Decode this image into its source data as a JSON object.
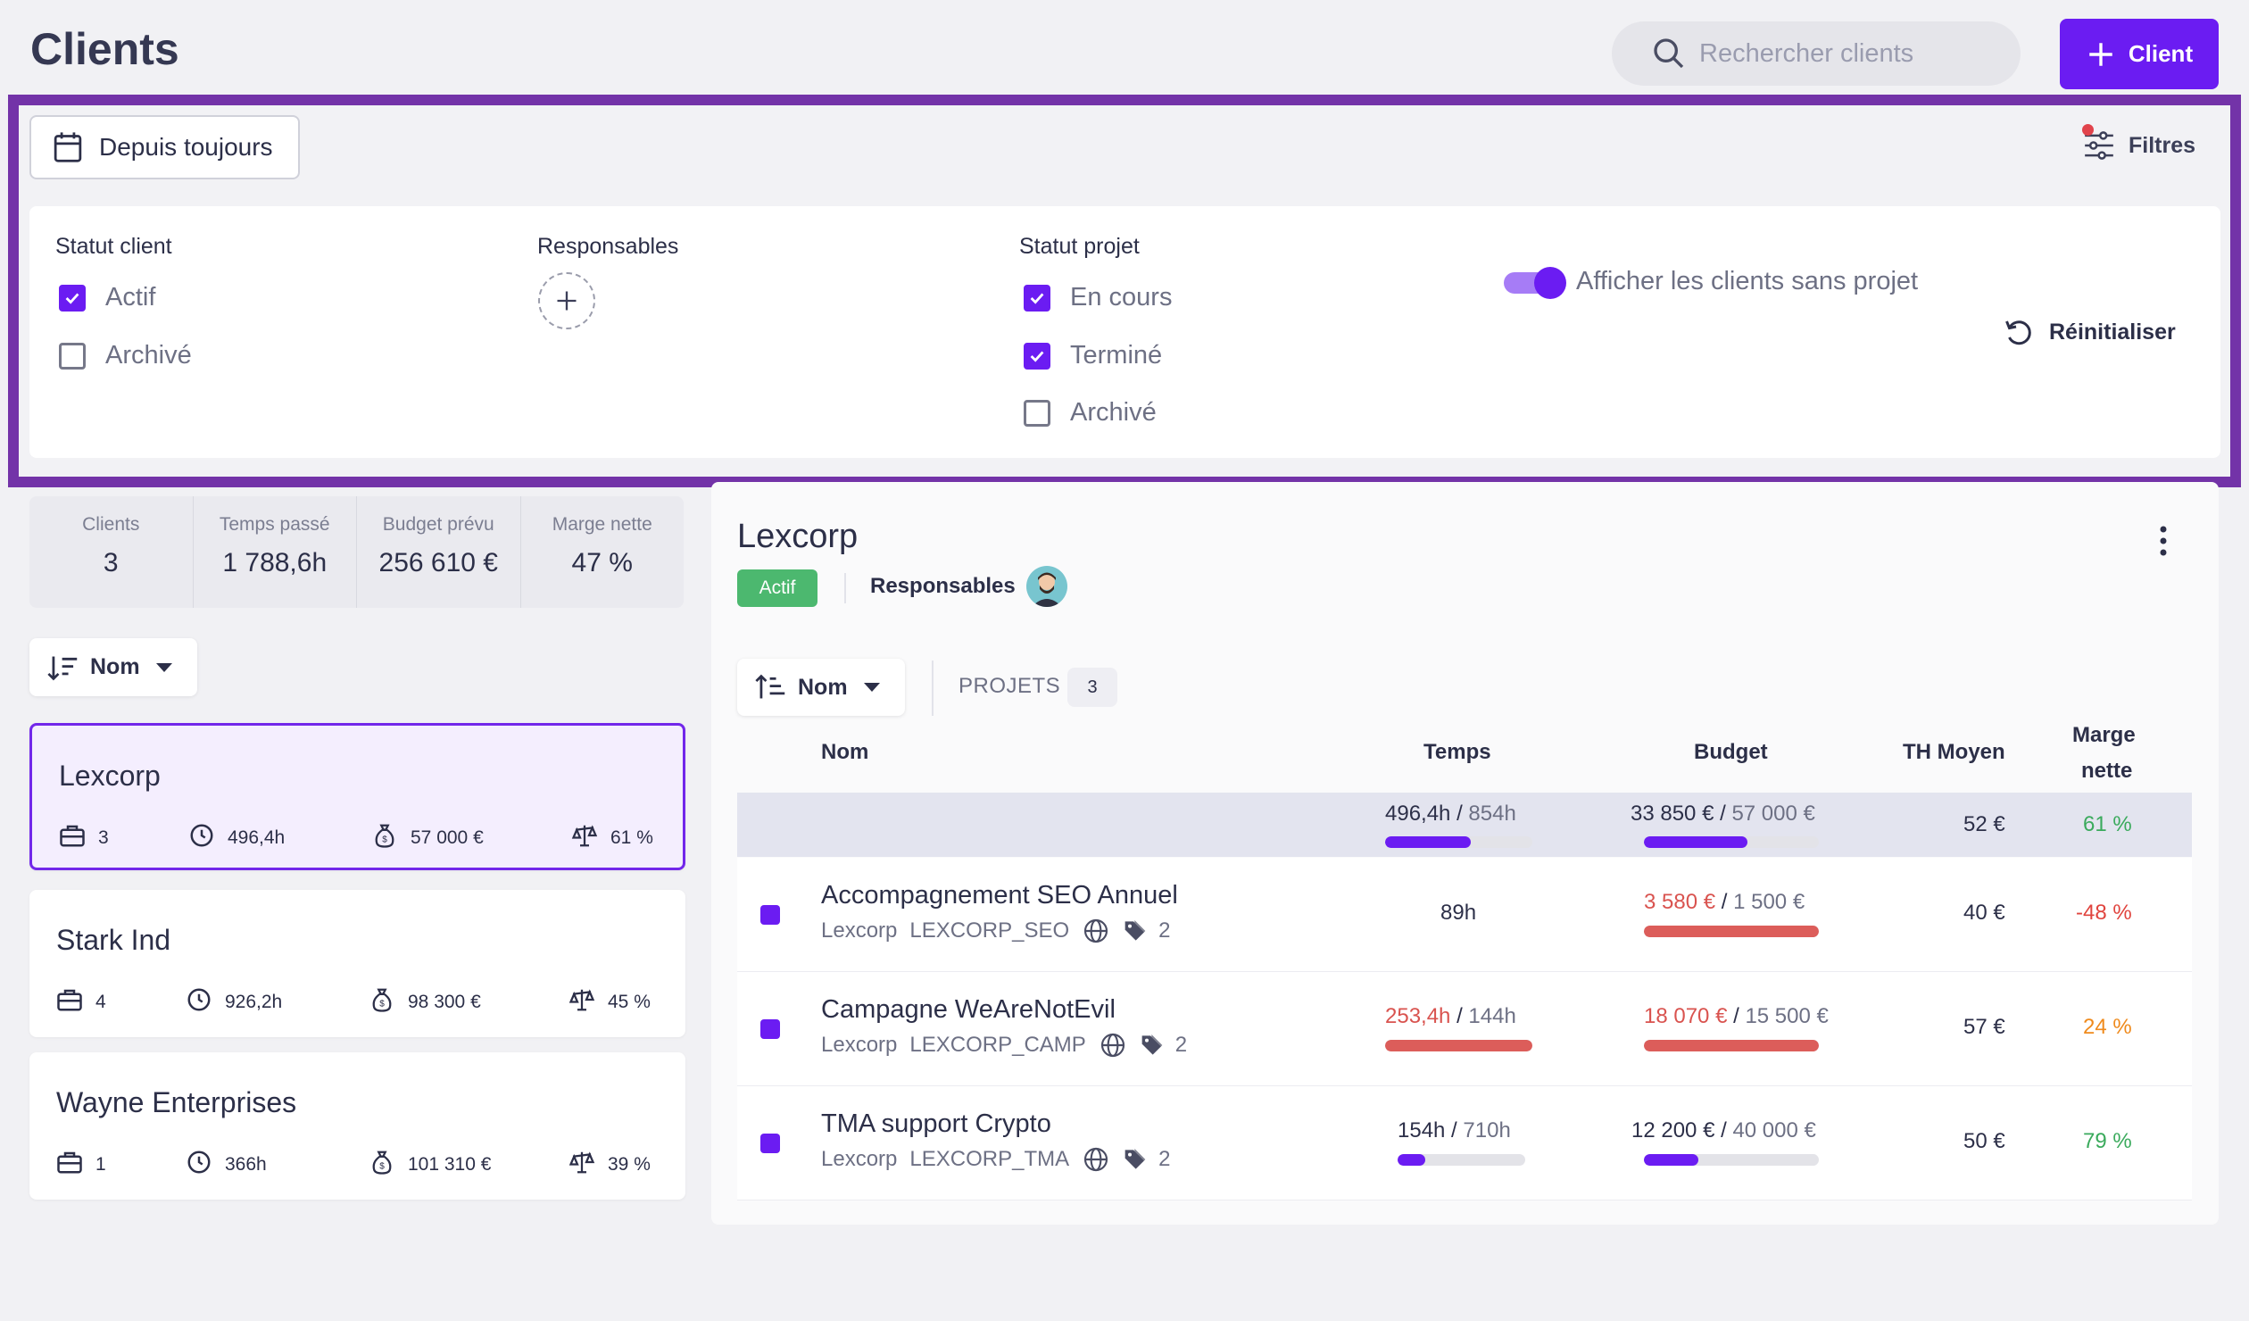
{
  "header": {
    "title": "Clients",
    "search_placeholder": "Rechercher clients",
    "add_client_label": "Client"
  },
  "filters": {
    "date_range": "Depuis toujours",
    "filters_label": "Filtres",
    "statut_client": {
      "title": "Statut client",
      "options": [
        {
          "label": "Actif",
          "checked": true
        },
        {
          "label": "Archivé",
          "checked": false
        }
      ]
    },
    "responsables_title": "Responsables",
    "statut_projet": {
      "title": "Statut projet",
      "options": [
        {
          "label": "En cours",
          "checked": true
        },
        {
          "label": "Terminé",
          "checked": true
        },
        {
          "label": "Archivé",
          "checked": false
        }
      ]
    },
    "toggle_label": "Afficher les clients sans projet",
    "toggle_on": true,
    "reset_label": "Réinitialiser"
  },
  "summary": {
    "clients_label": "Clients",
    "clients_value": "3",
    "temps_label": "Temps passé",
    "temps_value": "1 788,6h",
    "budget_label": "Budget prévu",
    "budget_value": "256 610 €",
    "marge_label": "Marge nette",
    "marge_value": "47 %"
  },
  "client_list": {
    "sort_label": "Nom",
    "clients": [
      {
        "name": "Lexcorp",
        "projects": "3",
        "time": "496,4h",
        "budget": "57 000 €",
        "margin": "61 %",
        "selected": true
      },
      {
        "name": "Stark Ind",
        "projects": "4",
        "time": "926,2h",
        "budget": "98 300 €",
        "margin": "45 %",
        "selected": false
      },
      {
        "name": "Wayne Enterprises",
        "projects": "1",
        "time": "366h",
        "budget": "101 310 €",
        "margin": "39 %",
        "selected": false
      }
    ]
  },
  "detail": {
    "client_name": "Lexcorp",
    "status_badge": "Actif",
    "responsables_label": "Responsables",
    "sort_label": "Nom",
    "projets_label": "PROJETS",
    "projets_count": "3",
    "columns": {
      "nom": "Nom",
      "temps": "Temps",
      "budget": "Budget",
      "th_moyen": "TH Moyen",
      "marge_1": "Marge",
      "marge_2": "nette"
    },
    "totals": {
      "time_spent": "496,4h",
      "time_planned": "854h",
      "time_progress": 0.58,
      "budget_spent": "33 850 €",
      "budget_planned": "57 000 €",
      "budget_progress": 0.59,
      "th": "52 €",
      "margin": "61 %"
    },
    "projects": [
      {
        "name": "Accompagnement SEO Annuel",
        "client": "Lexcorp",
        "code": "LEXCORP_SEO",
        "tags": "2",
        "time_spent": "89h",
        "time_planned": "",
        "time_progress": null,
        "time_over": false,
        "budget_spent": "3 580 €",
        "budget_planned": "1 500 €",
        "budget_progress": 1.0,
        "budget_over": true,
        "th": "40 €",
        "margin": "-48 %",
        "margin_color": "#e0443e"
      },
      {
        "name": "Campagne WeAreNotEvil",
        "client": "Lexcorp",
        "code": "LEXCORP_CAMP",
        "tags": "2",
        "time_spent": "253,4h",
        "time_planned": "144h",
        "time_progress": 1.0,
        "time_over": true,
        "budget_spent": "18 070 €",
        "budget_planned": "15 500 €",
        "budget_progress": 1.0,
        "budget_over": true,
        "th": "57 €",
        "margin": "24 %",
        "margin_color": "#ef8a1c"
      },
      {
        "name": "TMA support Crypto",
        "client": "Lexcorp",
        "code": "LEXCORP_TMA",
        "tags": "2",
        "time_spent": "154h",
        "time_planned": "710h",
        "time_progress": 0.22,
        "time_over": false,
        "budget_spent": "12 200 €",
        "budget_planned": "40 000 €",
        "budget_progress": 0.31,
        "budget_over": false,
        "th": "50 €",
        "margin": "79 %",
        "margin_color": "#3aaa5c"
      }
    ]
  },
  "colors": {
    "accent": "#6b1cf2",
    "over": "#dc5d5a",
    "positive": "#3aaa5c",
    "frame": "#7333a8"
  }
}
